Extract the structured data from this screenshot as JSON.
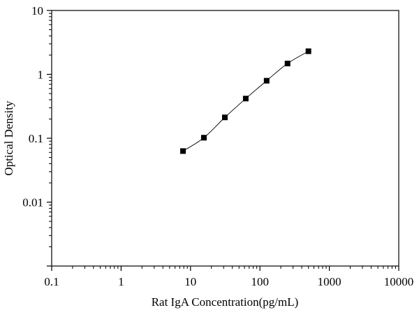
{
  "chart_data": {
    "type": "scatter",
    "title": "",
    "xlabel": "Rat IgA Concentration(pg/mL)",
    "ylabel": "Optical Density",
    "xscale": "log",
    "yscale": "log",
    "xlim": [
      0.1,
      10000
    ],
    "ylim": [
      0.001,
      10
    ],
    "x_ticks": [
      "0.1",
      "1",
      "10",
      "100",
      "1000",
      "10000"
    ],
    "y_ticks": [
      "0.01",
      "0.1",
      "1",
      "10"
    ],
    "grid": false,
    "legend": "none",
    "marker": "square",
    "series": [
      {
        "x": [
          7.8,
          15.6,
          31.25,
          62.5,
          125,
          250,
          500
        ],
        "y": [
          0.063,
          0.102,
          0.212,
          0.418,
          0.795,
          1.48,
          2.3
        ]
      }
    ],
    "colors": {
      "marker": "#000000",
      "line": "#000000",
      "axis": "#000000"
    }
  }
}
